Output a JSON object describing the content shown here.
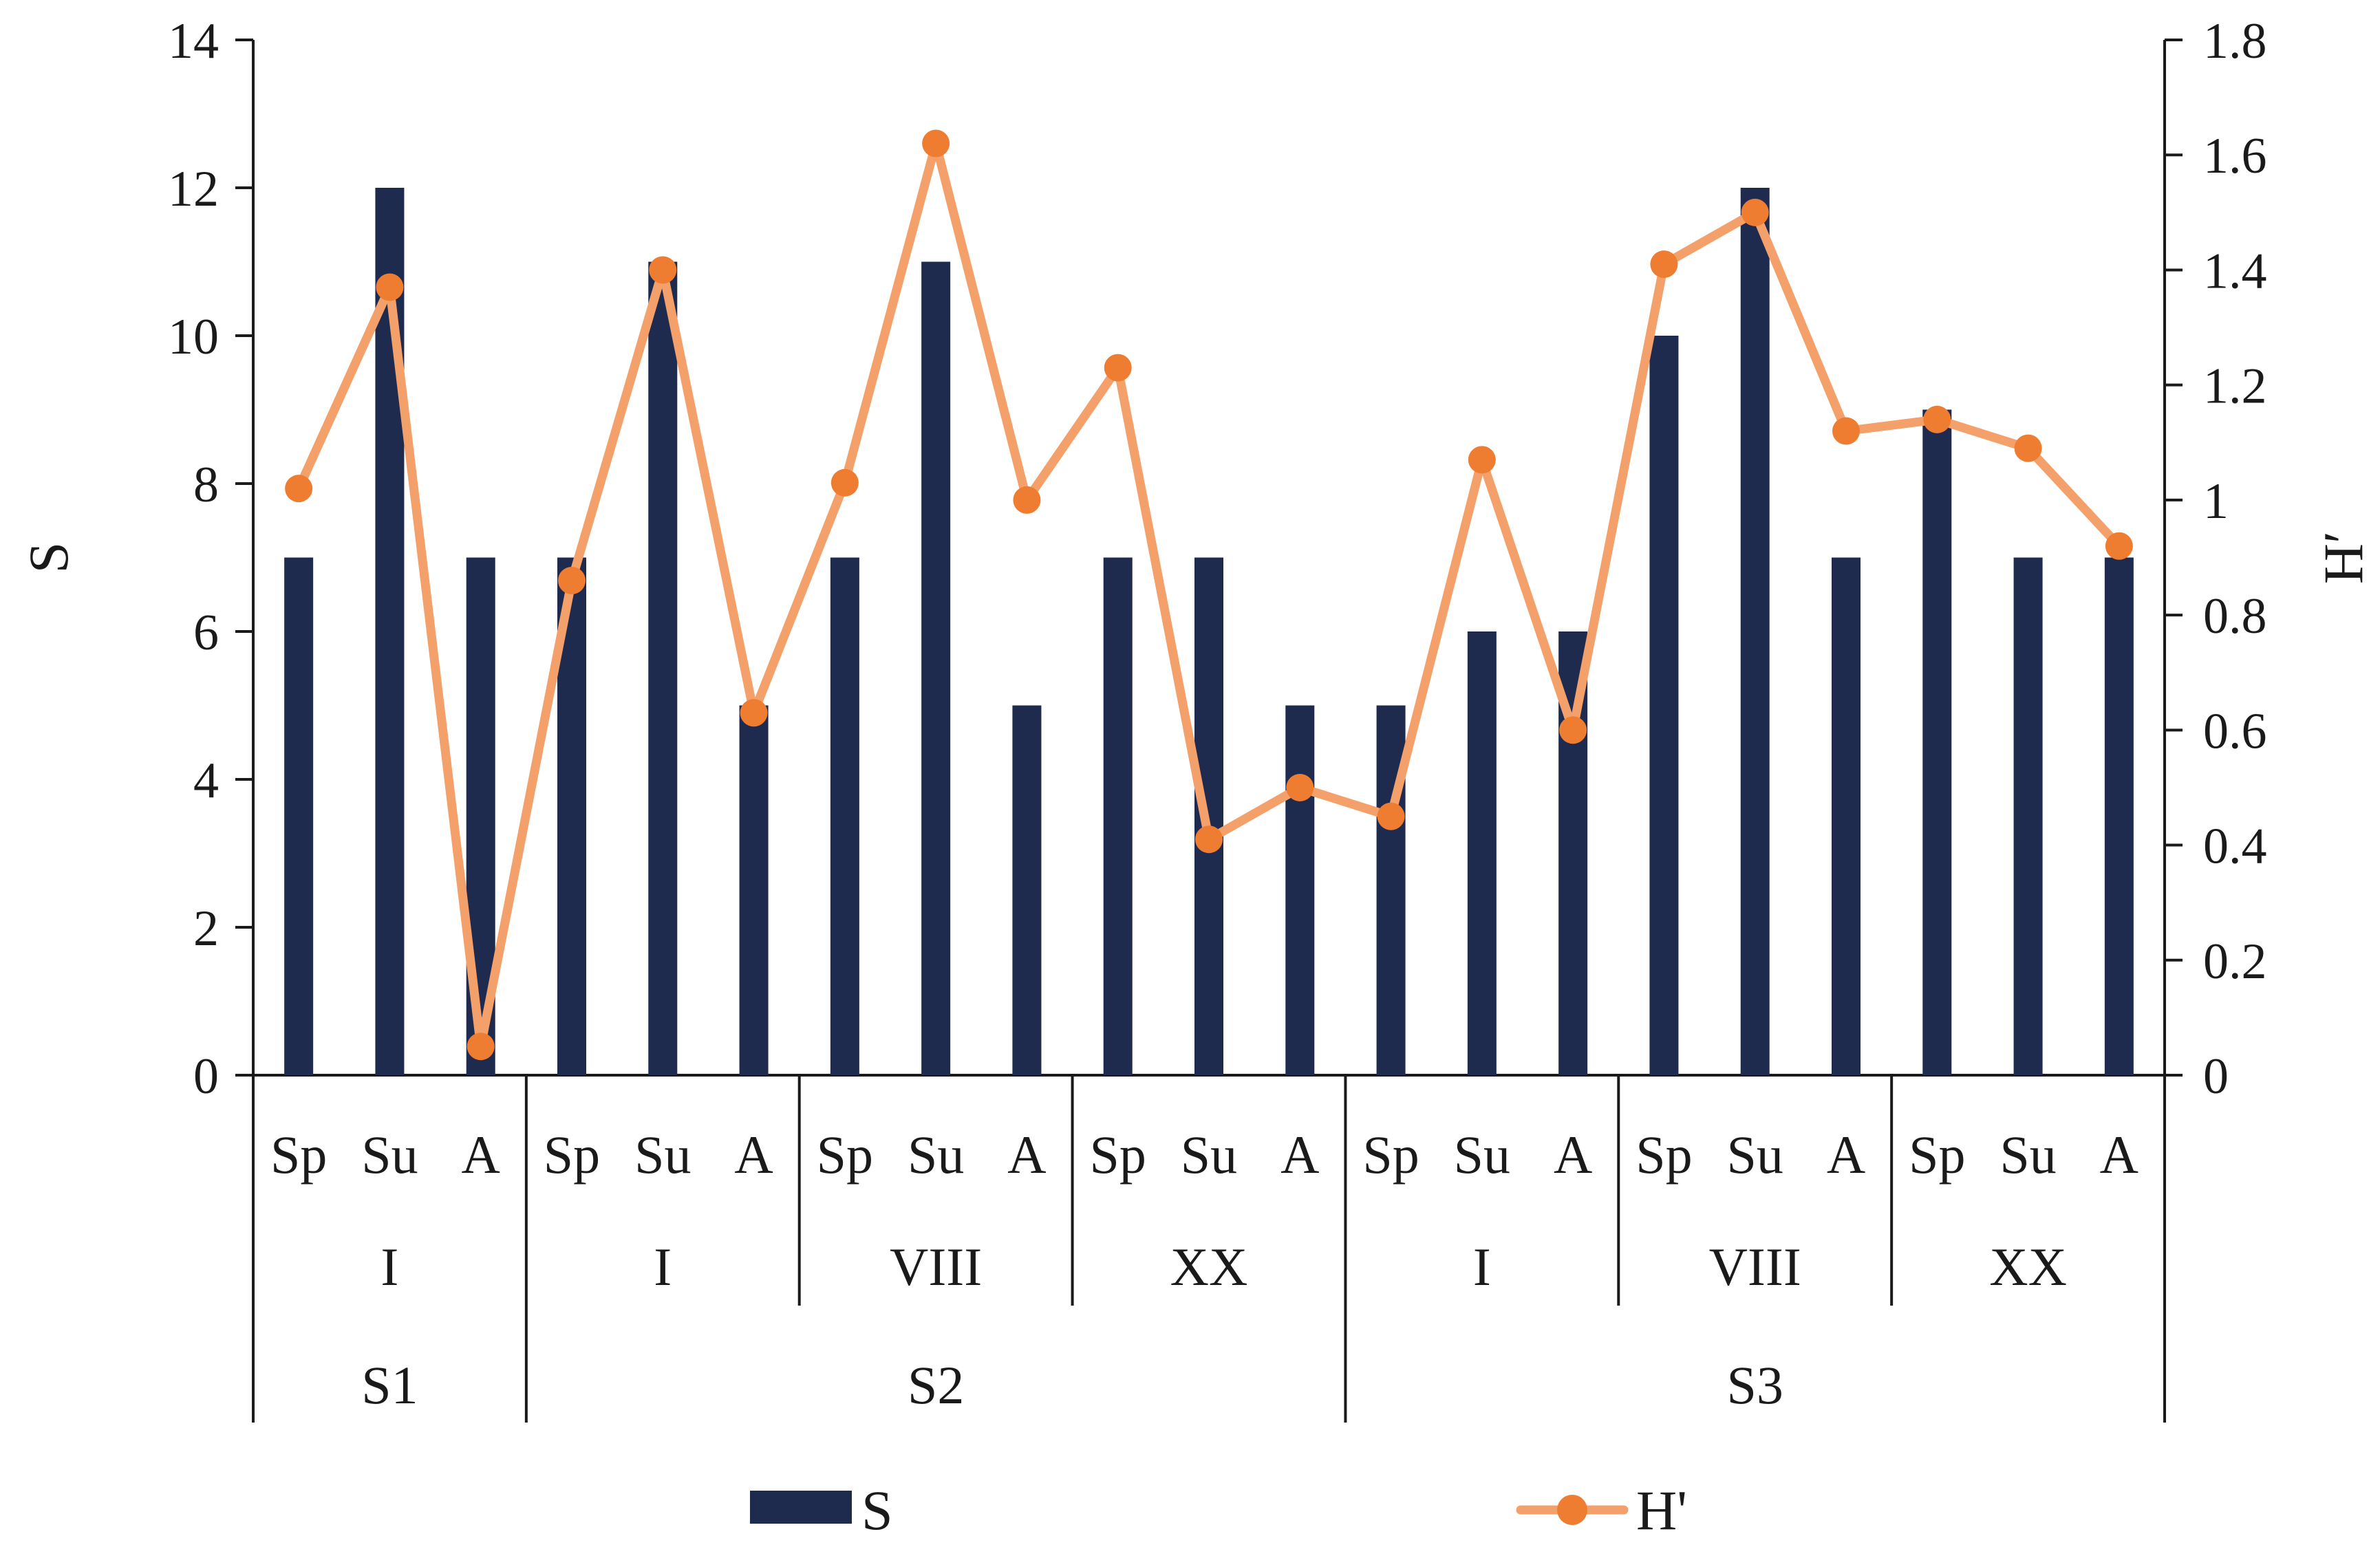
{
  "chart_data": {
    "type": "bar",
    "title": "",
    "categories": [
      "Sp",
      "Su",
      "A",
      "Sp",
      "Su",
      "A",
      "Sp",
      "Su",
      "A",
      "Sp",
      "Su",
      "A",
      "Sp",
      "Su",
      "A",
      "Sp",
      "Su",
      "A",
      "Sp",
      "Su",
      "A"
    ],
    "group_level_1": [
      {
        "label": "I",
        "span": 3
      },
      {
        "label": "I",
        "span": 3
      },
      {
        "label": "VIII",
        "span": 3
      },
      {
        "label": "XX",
        "span": 3
      },
      {
        "label": "I",
        "span": 3
      },
      {
        "label": "VIII",
        "span": 3
      },
      {
        "label": "XX",
        "span": 3
      }
    ],
    "group_level_2": [
      {
        "label": "S1",
        "span": 3
      },
      {
        "label": "S2",
        "span": 9
      },
      {
        "label": "S3",
        "span": 9
      }
    ],
    "series": [
      {
        "name": "S",
        "type": "bar",
        "axis": "left",
        "color": "#1f2a4f",
        "values": [
          7,
          12,
          7,
          7,
          11,
          5,
          7,
          11,
          5,
          7,
          7,
          5,
          5,
          6,
          6,
          10,
          12,
          7,
          9,
          7,
          7
        ]
      },
      {
        "name": "H'",
        "type": "line",
        "axis": "right",
        "color": "#f4a06b",
        "marker_color": "#ee7d31",
        "values": [
          1.02,
          1.37,
          0.05,
          0.86,
          1.4,
          0.63,
          1.03,
          1.62,
          1.0,
          1.23,
          0.41,
          0.5,
          0.45,
          1.07,
          0.6,
          1.41,
          1.5,
          1.12,
          1.14,
          1.09,
          0.92
        ]
      }
    ],
    "ylabel": "S",
    "ylim": [
      0,
      14
    ],
    "yticks": [
      "0",
      "2",
      "4",
      "6",
      "8",
      "10",
      "12",
      "14"
    ],
    "y2label": "H′",
    "y2lim": [
      0,
      1.8
    ],
    "y2ticks": [
      "0",
      "0.2",
      "0.4",
      "0.6",
      "0.8",
      "1",
      "1.2",
      "1.4",
      "1.6",
      "1.8"
    ],
    "legend": {
      "position": "bottom",
      "items": [
        "S",
        "H'"
      ]
    },
    "grid": false
  }
}
